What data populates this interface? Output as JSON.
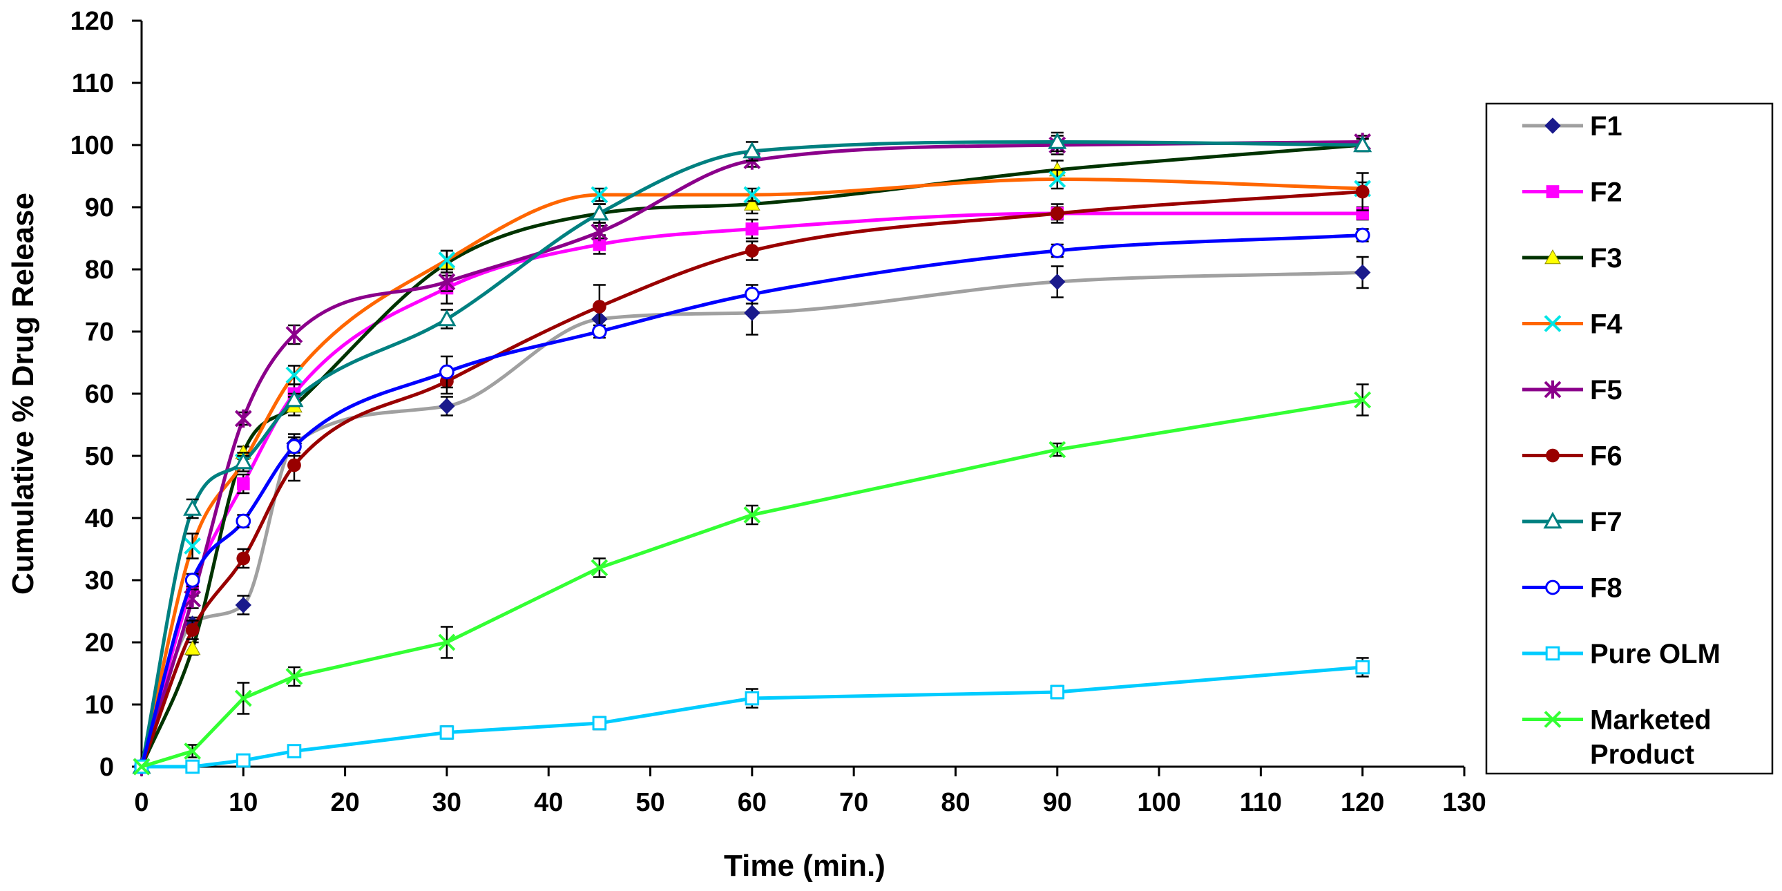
{
  "chart_data": {
    "type": "line",
    "title": "",
    "xlabel": "Time (min.)",
    "ylabel": "Cumulative % Drug Release",
    "xlim": [
      0,
      130
    ],
    "ylim": [
      0,
      120
    ],
    "xticks": [
      0,
      10,
      20,
      30,
      40,
      50,
      60,
      70,
      80,
      90,
      100,
      110,
      120,
      130
    ],
    "yticks": [
      0,
      10,
      20,
      30,
      40,
      50,
      60,
      70,
      80,
      90,
      100,
      110,
      120
    ],
    "grid": false,
    "legend_position": "right",
    "x": [
      0,
      5,
      10,
      15,
      30,
      45,
      60,
      90,
      120
    ],
    "series": [
      {
        "name": "F1",
        "color": "#A0A0A0",
        "marker": "diamond",
        "marker_color": "#1A1A8C",
        "smooth": true,
        "values": [
          0,
          23,
          26,
          52,
          58,
          72,
          73,
          78,
          79.5
        ],
        "errors": [
          0,
          1,
          1.5,
          1.5,
          1.5,
          2,
          3.5,
          2.5,
          2.5
        ]
      },
      {
        "name": "F2",
        "color": "#FF00FF",
        "marker": "square",
        "marker_color": "#FF00FF",
        "smooth": true,
        "values": [
          0,
          29,
          45.5,
          60,
          77,
          84,
          86.5,
          89,
          89
        ],
        "errors": [
          0,
          1.5,
          1.5,
          1.5,
          2.5,
          1.5,
          1.5,
          1,
          1
        ]
      },
      {
        "name": "F3",
        "color": "#003300",
        "marker": "triangle",
        "marker_color": "#FFFF00",
        "smooth": true,
        "values": [
          0,
          19,
          50.5,
          58,
          81,
          89,
          90.5,
          96,
          100
        ],
        "errors": [
          0,
          1,
          1,
          1.5,
          2,
          1.5,
          1.5,
          1.5,
          1
        ]
      },
      {
        "name": "F4",
        "color": "#FF6600",
        "marker": "x",
        "marker_color": "#00E5E5",
        "smooth": true,
        "values": [
          0,
          35.5,
          49,
          63,
          81.5,
          92,
          92,
          94.5,
          93
        ],
        "errors": [
          0,
          2,
          1.5,
          1.5,
          1.5,
          1,
          1,
          1.5,
          1
        ]
      },
      {
        "name": "F5",
        "color": "#8B008B",
        "marker": "star",
        "marker_color": "#8B008B",
        "smooth": true,
        "values": [
          0,
          27,
          56,
          69.5,
          78,
          86,
          97.5,
          100,
          100.5
        ],
        "errors": [
          0,
          1.5,
          1,
          1.5,
          1.5,
          1,
          1,
          1.5,
          1
        ]
      },
      {
        "name": "F6",
        "color": "#990000",
        "marker": "circle-filled",
        "marker_color": "#990000",
        "smooth": true,
        "values": [
          0,
          22,
          33.5,
          48.5,
          62,
          74,
          83,
          89,
          92.5
        ],
        "errors": [
          0,
          1.5,
          1.5,
          2.5,
          2,
          3.5,
          1.5,
          1.5,
          3
        ]
      },
      {
        "name": "F7",
        "color": "#008080",
        "marker": "triangle-open",
        "marker_color": "#008080",
        "smooth": true,
        "values": [
          0,
          41.5,
          49,
          59,
          72,
          89,
          99,
          100.5,
          100
        ],
        "errors": [
          0,
          1.5,
          1,
          1,
          1.5,
          1.5,
          1.5,
          1.5,
          1
        ]
      },
      {
        "name": "F8",
        "color": "#0000FF",
        "marker": "circle-open",
        "marker_color": "#0000FF",
        "smooth": true,
        "values": [
          0,
          30,
          39.5,
          51.5,
          63.5,
          70,
          76,
          83,
          85.5
        ],
        "errors": [
          0,
          1,
          1,
          1.5,
          2.5,
          1,
          1.5,
          1,
          1
        ]
      },
      {
        "name": "Pure OLM",
        "color": "#00CCFF",
        "marker": "square-open",
        "marker_color": "#00CCFF",
        "smooth": false,
        "values": [
          0,
          0,
          1,
          2.5,
          5.5,
          7,
          11,
          12,
          16
        ],
        "errors": [
          0,
          0,
          0.5,
          0.8,
          1,
          1,
          1.5,
          1,
          1.5
        ]
      },
      {
        "name": "Marketed Product",
        "color": "#33FF33",
        "marker": "x",
        "marker_color": "#33FF33",
        "smooth": false,
        "values": [
          0,
          2.5,
          11,
          14.5,
          20,
          32,
          40.5,
          51,
          59
        ],
        "errors": [
          0,
          1,
          2.5,
          1.5,
          2.5,
          1.5,
          1.5,
          1,
          2.5
        ]
      }
    ]
  }
}
